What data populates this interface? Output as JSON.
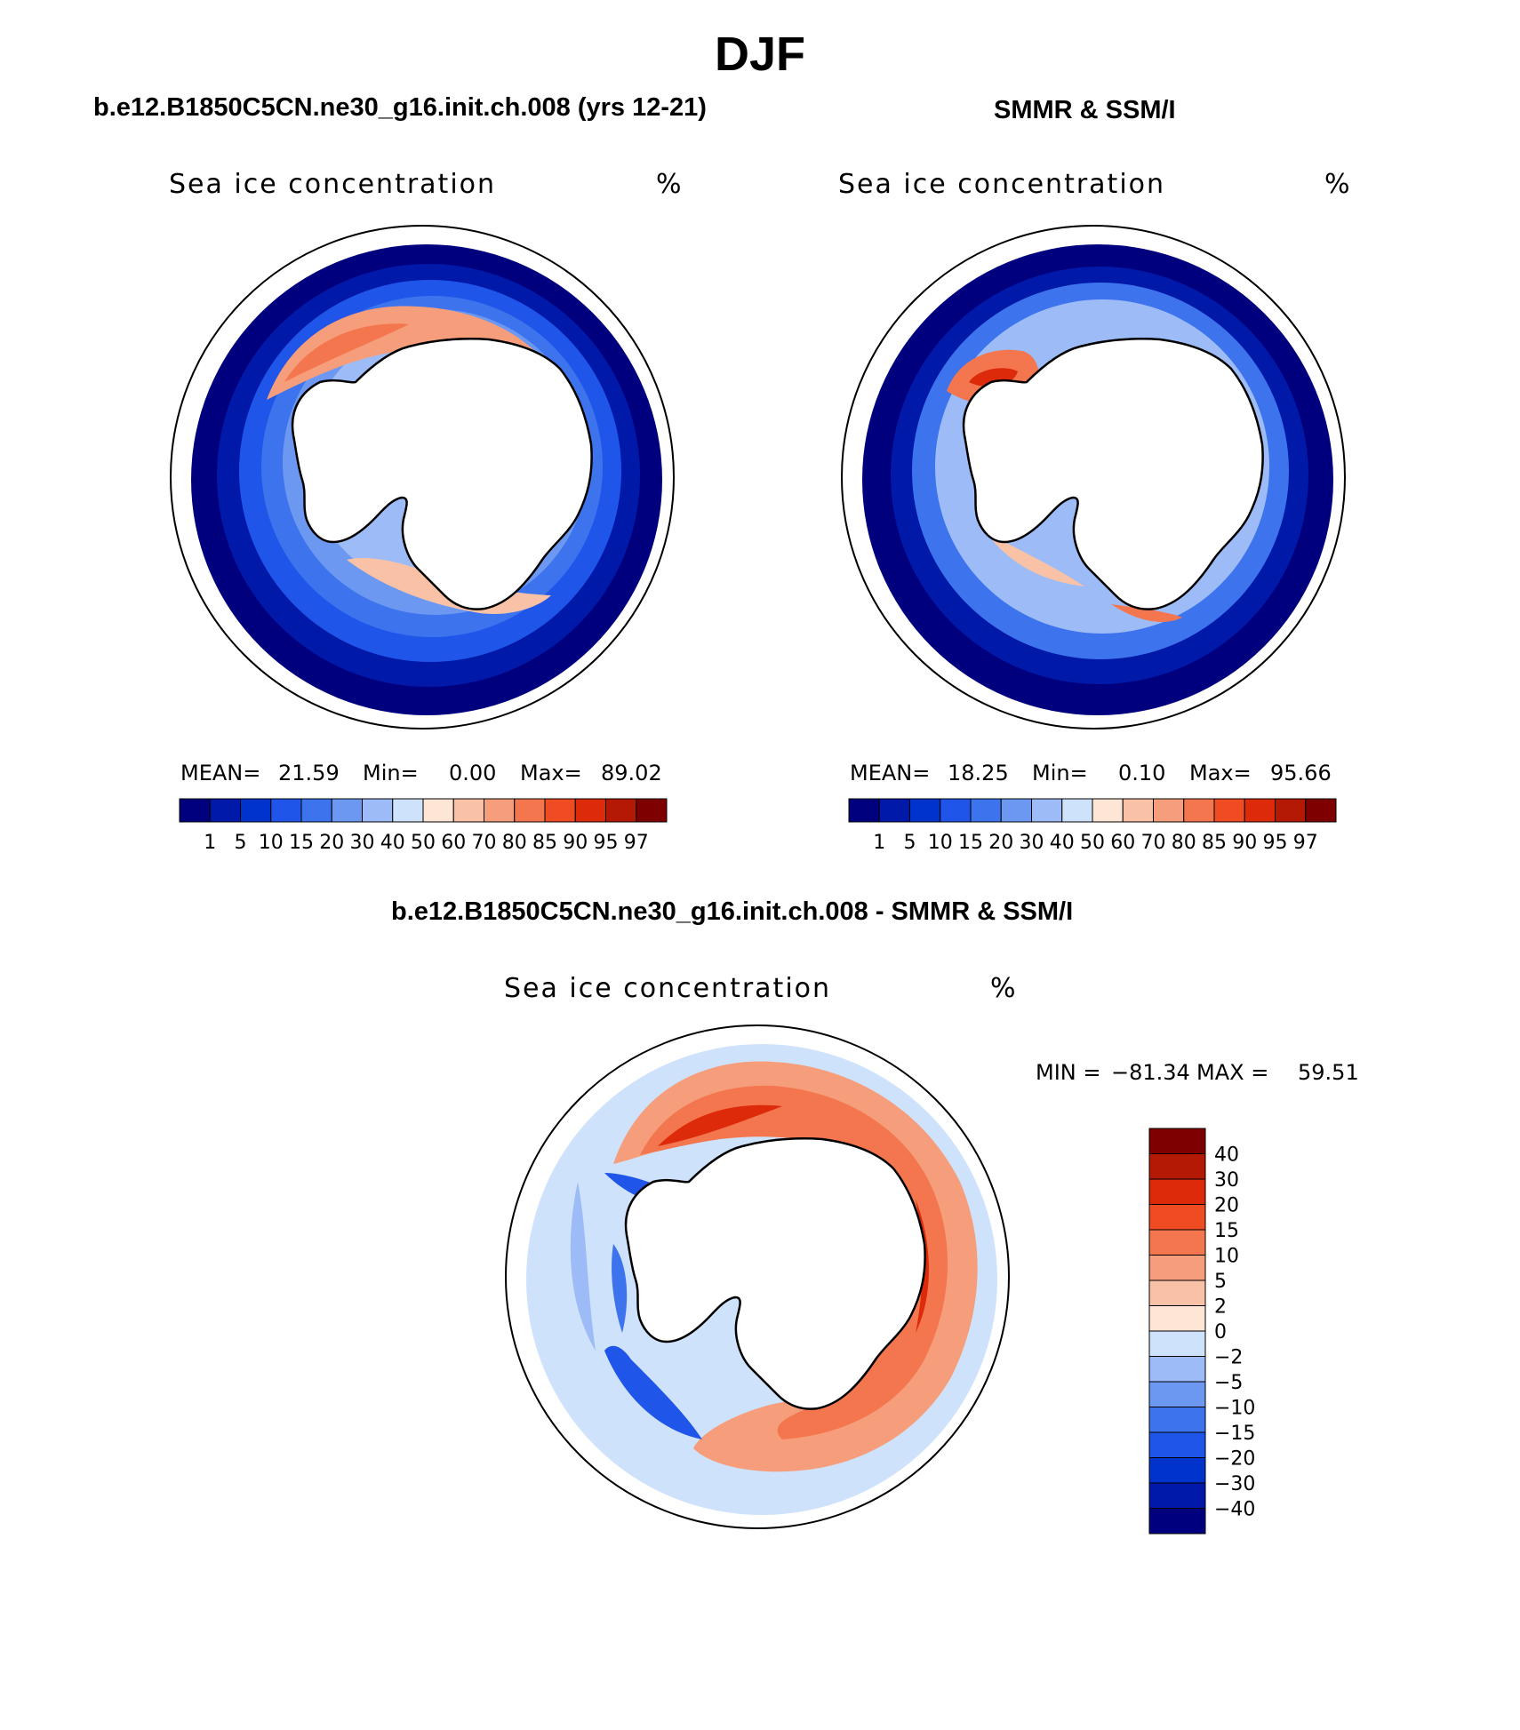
{
  "main_title": "DJF",
  "panels": [
    {
      "title": "b.e12.B1850C5CN.ne30_g16.init.ch.008 (yrs 12-21)",
      "variable": "Sea ice concentration",
      "units": "%",
      "mean_label": "MEAN=",
      "mean": "21.59",
      "min_label": "Min=",
      "min": "0.00",
      "max_label": "Max=",
      "max": "89.02"
    },
    {
      "title": "SMMR & SSM/I",
      "variable": "Sea ice concentration",
      "units": "%",
      "mean_label": "MEAN=",
      "mean": "18.25",
      "min_label": "Min=",
      "min": "0.10",
      "max_label": "Max=",
      "max": "95.66"
    },
    {
      "title": "b.e12.B1850C5CN.ne30_g16.init.ch.008 - SMMR & SSM/I",
      "variable": "Sea ice concentration",
      "units": "%",
      "min_label": "MIN =",
      "min": "−81.34",
      "max_label": "MAX =",
      "max": "59.51"
    }
  ],
  "colorbar_conc": {
    "labels": [
      "1",
      "5",
      "10",
      "15",
      "20",
      "30",
      "40",
      "50",
      "60",
      "70",
      "80",
      "85",
      "90",
      "95",
      "97"
    ],
    "colors": [
      "#00007f",
      "#0019a8",
      "#0033cc",
      "#1f55e8",
      "#3d74ee",
      "#6d98f2",
      "#9dbcf7",
      "#cfe2fb",
      "#fde6d6",
      "#f9c2a6",
      "#f69e7b",
      "#f3764e",
      "#ef4c23",
      "#dc2a0b",
      "#b31905",
      "#7f0000"
    ]
  },
  "colorbar_diff": {
    "labels": [
      "40",
      "30",
      "20",
      "15",
      "10",
      "5",
      "2",
      "0",
      "−2",
      "−5",
      "−10",
      "−15",
      "−20",
      "−30",
      "−40"
    ],
    "colors": [
      "#7f0000",
      "#b31905",
      "#dc2a0b",
      "#ef4c23",
      "#f3764e",
      "#f69e7b",
      "#f9c2a6",
      "#fde6d6",
      "#cfe2fb",
      "#9dbcf7",
      "#6d98f2",
      "#3d74ee",
      "#1f55e8",
      "#0033cc",
      "#0019a8",
      "#00007f"
    ]
  },
  "map_colors": {
    "land": "#ffffff",
    "coast": "#000000"
  }
}
